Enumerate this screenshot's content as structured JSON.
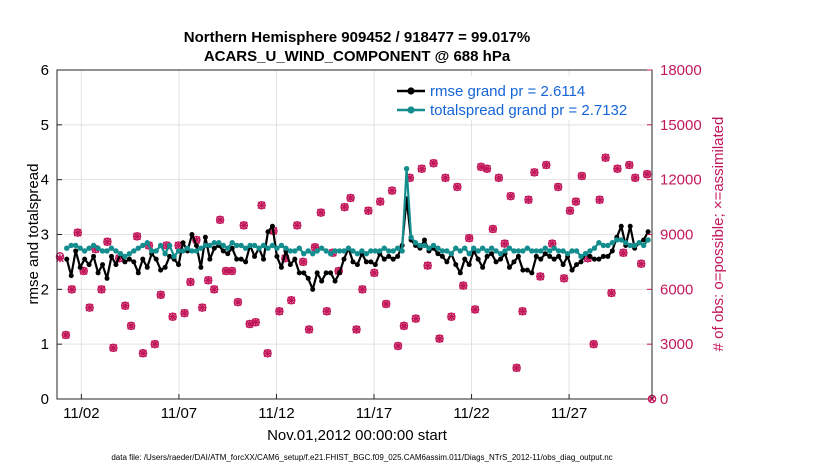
{
  "chart_data": {
    "type": "line",
    "title": [
      "Northern Hemisphere 909452 / 918477 = 99.017%",
      "ACARS_U_WIND_COMPONENT @ 688 hPa"
    ],
    "xlabel": "Nov.01,2012 00:00:00 start",
    "ylabel": "rmse and totalspread",
    "ylabel_right": "# of obs: o=possible; ×=assimilated",
    "footer": "data file: /Users/raeder/DAI/ATM_forcXX/CAM6_setup/f.e21.FHIST_BGC.f09_025.CAM6assim.011/Diags_NTrS_2012-11/obs_diag_output.nc",
    "xlim": [
      0.5,
      31.0
    ],
    "ylim": [
      0,
      6
    ],
    "ylim_right": [
      0,
      18000
    ],
    "x_ticks": [
      1.75,
      6.75,
      11.75,
      16.75,
      21.75,
      26.75
    ],
    "x_tick_labels": [
      "11/02",
      "11/07",
      "11/12",
      "11/17",
      "11/22",
      "11/27"
    ],
    "y_ticks": [
      "0",
      "1",
      "2",
      "3",
      "4",
      "5",
      "6"
    ],
    "y_ticks_right": [
      "0",
      "3000",
      "6000",
      "9000",
      "12000",
      "15000",
      "18000"
    ],
    "colors": {
      "rmse": "#000000",
      "spread": "#138d8d",
      "obs": "#c2185b",
      "legend_text": "#1565d8"
    },
    "legend": [
      "rmse grand pr = 2.6114",
      "totalspread grand pr = 2.7132"
    ],
    "series": [
      {
        "name": "rmse",
        "axis": "left",
        "color": "#000000",
        "values": [
          2.55,
          2.25,
          2.7,
          2.4,
          2.55,
          2.45,
          2.6,
          2.3,
          2.45,
          2.2,
          2.6,
          2.45,
          2.65,
          2.5,
          2.55,
          2.5,
          2.3,
          2.55,
          2.4,
          2.65,
          2.55,
          2.35,
          2.4,
          2.6,
          2.55,
          2.45,
          2.85,
          2.7,
          3.0,
          2.8,
          2.4,
          2.95,
          2.55,
          2.75,
          2.8,
          2.7,
          2.65,
          2.75,
          2.55,
          2.55,
          2.5,
          2.8,
          2.6,
          2.75,
          2.55,
          3.05,
          3.15,
          2.6,
          2.4,
          2.7,
          2.45,
          2.55,
          2.3,
          2.3,
          2.2,
          2.0,
          2.3,
          2.15,
          2.3,
          2.3,
          2.15,
          2.3,
          2.55,
          2.75,
          2.5,
          2.45,
          2.65,
          2.5,
          2.5,
          2.45,
          2.65,
          2.55,
          2.6,
          2.55,
          2.6,
          2.8,
          3.65,
          2.9,
          2.8,
          2.75,
          2.9,
          2.7,
          2.75,
          2.65,
          2.6,
          2.5,
          2.65,
          2.45,
          2.3,
          2.55,
          2.45,
          2.7,
          2.55,
          2.4,
          2.6,
          2.65,
          2.5,
          2.55,
          2.65,
          2.4,
          2.5,
          2.6,
          2.35,
          2.35,
          2.3,
          2.6,
          2.55,
          2.65,
          2.6,
          2.55,
          2.6,
          2.45,
          2.6,
          2.35,
          2.45,
          2.5,
          2.65,
          2.6,
          2.55,
          2.55,
          2.6,
          2.6,
          2.7,
          2.95,
          3.15,
          2.8,
          3.15,
          2.75,
          2.85,
          2.9,
          3.05
        ]
      },
      {
        "name": "totalspread",
        "axis": "left",
        "color": "#138d8d",
        "values": [
          2.75,
          2.8,
          2.8,
          2.75,
          2.7,
          2.75,
          2.8,
          2.75,
          2.7,
          2.7,
          2.75,
          2.7,
          2.65,
          2.6,
          2.65,
          2.7,
          2.75,
          2.8,
          2.85,
          2.7,
          2.7,
          2.8,
          2.65,
          2.8,
          2.6,
          2.7,
          2.7,
          2.75,
          2.7,
          2.7,
          2.75,
          2.8,
          2.8,
          2.85,
          2.85,
          2.8,
          2.75,
          2.85,
          2.8,
          2.8,
          2.75,
          2.8,
          2.8,
          2.75,
          2.8,
          2.75,
          2.8,
          2.75,
          2.8,
          2.75,
          2.7,
          2.7,
          2.75,
          2.65,
          2.7,
          2.65,
          2.7,
          2.75,
          2.7,
          2.65,
          2.7,
          2.7,
          2.7,
          2.75,
          2.7,
          2.65,
          2.7,
          2.65,
          2.7,
          2.7,
          2.7,
          2.75,
          2.7,
          2.7,
          2.75,
          2.7,
          4.2,
          2.95,
          2.85,
          2.8,
          2.8,
          2.75,
          2.8,
          2.75,
          2.7,
          2.7,
          2.65,
          2.75,
          2.7,
          2.75,
          2.65,
          2.75,
          2.7,
          2.75,
          2.7,
          2.75,
          2.7,
          2.65,
          2.7,
          2.75,
          2.7,
          2.7,
          2.7,
          2.75,
          2.7,
          2.7,
          2.7,
          2.75,
          2.7,
          2.75,
          2.7,
          2.7,
          2.65,
          2.7,
          2.7,
          2.6,
          2.65,
          2.7,
          2.75,
          2.85,
          2.8,
          2.8,
          2.85,
          2.9,
          2.9,
          2.85,
          2.8,
          2.8,
          2.85,
          2.8,
          2.9
        ]
      },
      {
        "name": "obs_possible",
        "axis": "right",
        "color": "#c2185b",
        "values": [
          7800,
          3500,
          6000,
          9100,
          7000,
          5000,
          8200,
          6000,
          8600,
          2800,
          7700,
          5100,
          4000,
          8900,
          2500,
          8400,
          3000,
          5700,
          8400,
          4500,
          8400,
          4700,
          6400,
          8700,
          5000,
          6500,
          6000,
          9800,
          7000,
          7000,
          5300,
          9500,
          4100,
          4200,
          10600,
          2500,
          9200,
          4800,
          7700,
          5400,
          9500,
          7500,
          3800,
          8300,
          10200,
          4800,
          8000,
          7000,
          10500,
          11000,
          3800,
          6000,
          10300,
          6900,
          10800,
          5200,
          11400,
          2900,
          4000,
          12100,
          4400,
          12600,
          7300,
          12900,
          3300,
          12100,
          4500,
          11600,
          6200,
          8800,
          4900,
          12700,
          12600,
          9300,
          12100,
          8500,
          11100,
          1700,
          4800,
          10900,
          12400,
          6700,
          12800,
          8500,
          11600,
          6600,
          10300,
          10800,
          12200,
          7700,
          3000,
          10900,
          13200,
          5800,
          12600,
          8000,
          12800,
          12100,
          7400,
          12300
        ]
      },
      {
        "name": "obs_assimilated",
        "axis": "right",
        "color": "#c2185b",
        "values": [
          7700,
          3500,
          6000,
          9100,
          7000,
          5000,
          8200,
          6000,
          8600,
          2800,
          7700,
          5100,
          4000,
          8900,
          2500,
          8400,
          3000,
          5700,
          8400,
          4500,
          8400,
          4700,
          6400,
          8700,
          5000,
          6500,
          6000,
          9800,
          7000,
          7000,
          5300,
          9500,
          4100,
          4200,
          10600,
          2500,
          9200,
          4800,
          7700,
          5400,
          9500,
          7500,
          3800,
          8300,
          10200,
          4800,
          8000,
          7000,
          10500,
          11000,
          3800,
          6000,
          10300,
          6900,
          10800,
          5200,
          11400,
          2900,
          4000,
          12100,
          4400,
          12600,
          7300,
          12900,
          3300,
          12100,
          4500,
          11600,
          6200,
          8800,
          4900,
          12700,
          12600,
          9300,
          12100,
          8500,
          11100,
          1700,
          4800,
          10900,
          12400,
          6700,
          12800,
          8500,
          11600,
          6600,
          10300,
          10800,
          12200,
          7700,
          3000,
          10900,
          13200,
          5800,
          12600,
          8000,
          12800,
          12100,
          7400,
          12300
        ]
      }
    ]
  }
}
